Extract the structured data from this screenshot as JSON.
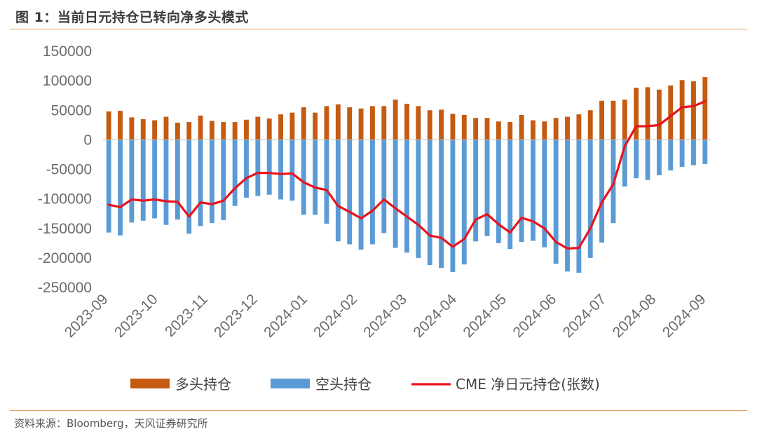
{
  "header": {
    "title": "图 1：当前日元持仓已转向净多头模式"
  },
  "footer": {
    "source": "资料来源：Bloomberg，天风证券研究所"
  },
  "colors": {
    "long": "#c55a11",
    "short": "#5b9bd5",
    "net": "#e8141e",
    "rule": "#e0a060",
    "axis": "#bfbfbf"
  },
  "chart_data": {
    "type": "bar",
    "title": "图 1：当前日元持仓已转向净多头模式",
    "ylim": [
      -250000,
      150000
    ],
    "yticks": [
      150000,
      100000,
      50000,
      0,
      -50000,
      -100000,
      -150000,
      -200000,
      -250000
    ],
    "x_labels": [
      "2023-09",
      "2023-10",
      "2023-11",
      "2023-12",
      "2024-01",
      "2024-02",
      "2024-03",
      "2024-04",
      "2024-05",
      "2024-06",
      "2024-07",
      "2024-08",
      "2024-09"
    ],
    "legend_position": "bottom",
    "grid": false,
    "series": [
      {
        "name": "多头持仓",
        "type": "bar",
        "values": [
          48000,
          49000,
          38000,
          35000,
          33000,
          39000,
          29000,
          30000,
          41000,
          32000,
          30000,
          30000,
          34000,
          39000,
          36000,
          43000,
          46000,
          55000,
          46000,
          57000,
          60000,
          55000,
          53000,
          57000,
          57000,
          68000,
          61000,
          57000,
          50000,
          51000,
          44000,
          42000,
          37000,
          37000,
          31000,
          30000,
          42000,
          33000,
          31000,
          37000,
          39000,
          43000,
          50000,
          66000,
          66000,
          68000,
          88000,
          89000,
          85000,
          92000,
          101000,
          99000,
          106000
        ]
      },
      {
        "name": "空头持仓",
        "type": "bar",
        "values": [
          -157000,
          -162000,
          -140000,
          -137000,
          -133000,
          -144000,
          -135000,
          -159000,
          -146000,
          -141000,
          -136000,
          -112000,
          -98000,
          -95000,
          -93000,
          -101000,
          -103000,
          -127000,
          -127000,
          -142000,
          -172000,
          -177000,
          -186000,
          -177000,
          -158000,
          -183000,
          -191000,
          -200000,
          -212000,
          -217000,
          -224000,
          -211000,
          -172000,
          -163000,
          -175000,
          -185000,
          -173000,
          -171000,
          -182000,
          -210000,
          -223000,
          -225000,
          -200000,
          -174000,
          -141000,
          -79000,
          -65000,
          -68000,
          -60000,
          -52000,
          -46000,
          -43000,
          -41000
        ]
      },
      {
        "name": "CME 净日元持仓(张数)",
        "type": "line",
        "values": [
          -110000,
          -114000,
          -101000,
          -103000,
          -101000,
          -104000,
          -105000,
          -130000,
          -106000,
          -109000,
          -103000,
          -82000,
          -65000,
          -56000,
          -56000,
          -58000,
          -57000,
          -72000,
          -81000,
          -85000,
          -112000,
          -122000,
          -133000,
          -120000,
          -101000,
          -116000,
          -130000,
          -144000,
          -162000,
          -166000,
          -181000,
          -168000,
          -135000,
          -126000,
          -143000,
          -157000,
          -132000,
          -138000,
          -150000,
          -173000,
          -184000,
          -183000,
          -150000,
          -106000,
          -75000,
          -11000,
          23000,
          23000,
          25000,
          40000,
          55000,
          57000,
          65000
        ]
      }
    ]
  }
}
